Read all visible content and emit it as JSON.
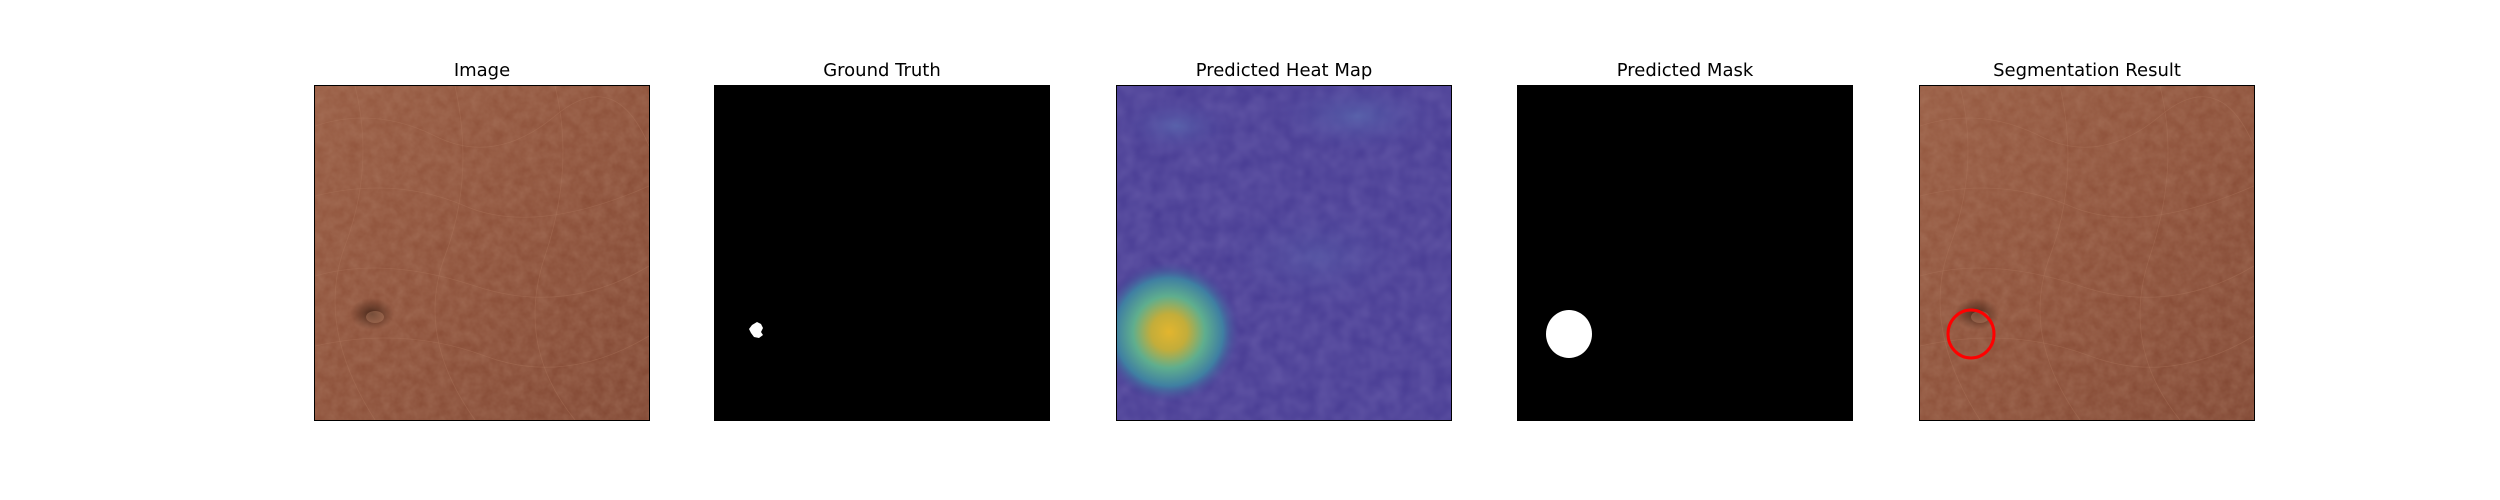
{
  "figure": {
    "panels": [
      {
        "id": "image",
        "title": "Image"
      },
      {
        "id": "ground-truth",
        "title": "Ground Truth"
      },
      {
        "id": "heat-map",
        "title": "Predicted Heat Map"
      },
      {
        "id": "mask",
        "title": "Predicted Mask"
      },
      {
        "id": "result",
        "title": "Segmentation Result"
      }
    ]
  },
  "colors": {
    "leather_base": "#8b4e37",
    "leather_light": "#a06850",
    "leather_dark": "#6d3b28",
    "heat_low": "#3f2f8c",
    "heat_high": "#e3b52e",
    "heat_mid": "#4fa89a",
    "mask_fg": "#ffffff",
    "mask_bg": "#000000",
    "result_circle": "#ff0000"
  }
}
